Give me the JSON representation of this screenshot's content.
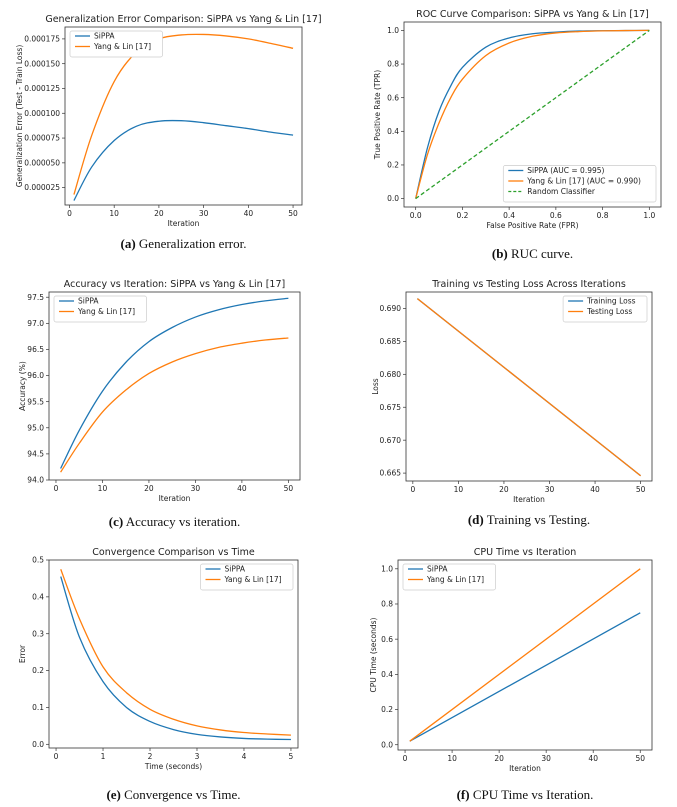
{
  "chart_data": [
    {
      "id": "a",
      "type": "line",
      "title": "Generalization Error Comparison: SiPPA vs Yang & Lin [17]",
      "xlabel": "Iteration",
      "ylabel": "Generalization Error (Test - Train Loss)",
      "xlim": [
        -1,
        52
      ],
      "ylim": [
        7.5e-06,
        0.000187
      ],
      "xticks": [
        0,
        10,
        20,
        30,
        40,
        50
      ],
      "yticks": [
        2.5e-05,
        5e-05,
        7.5e-05,
        0.0001,
        0.000125,
        0.00015,
        0.000175
      ],
      "ytick_labels": [
        "0.000025",
        "0.000050",
        "0.000075",
        "0.000100",
        "0.000125",
        "0.000150",
        "0.000175"
      ],
      "legend_loc": "top-left",
      "series": [
        {
          "name": "SiPPA",
          "color": "#1f77b4",
          "x": [
            1,
            5,
            10,
            15,
            20,
            25,
            30,
            35,
            40,
            45,
            50
          ],
          "values": [
            1.2e-05,
            4.6e-05,
            7.25e-05,
            8.7e-05,
            9.2e-05,
            9.25e-05,
            9.05e-05,
            8.75e-05,
            8.45e-05,
            8.1e-05,
            7.8e-05
          ]
        },
        {
          "name": "Yang & Lin [17]",
          "color": "#ff7f0e",
          "x": [
            1,
            5,
            10,
            15,
            20,
            25,
            30,
            35,
            40,
            45,
            50
          ],
          "values": [
            1.8e-05,
            7.8e-05,
            0.000132,
            0.000162,
            0.000175,
            0.000179,
            0.0001795,
            0.000178,
            0.000175,
            0.0001705,
            0.0001655
          ]
        }
      ],
      "caption_label": "(a)",
      "caption_text": "Generalization error."
    },
    {
      "id": "b",
      "type": "line",
      "title": "ROC Curve Comparison: SiPPA vs Yang & Lin [17]",
      "xlabel": "False Positive Rate (FPR)",
      "ylabel": "True Positive Rate (TPR)",
      "xlim": [
        -0.05,
        1.05
      ],
      "ylim": [
        -0.05,
        1.05
      ],
      "xticks": [
        0.0,
        0.2,
        0.4,
        0.6,
        0.8,
        1.0
      ],
      "xtick_labels": [
        "0.0",
        "0.2",
        "0.4",
        "0.6",
        "0.8",
        "1.0"
      ],
      "yticks": [
        0.0,
        0.2,
        0.4,
        0.6,
        0.8,
        1.0
      ],
      "ytick_labels": [
        "0.0",
        "0.2",
        "0.4",
        "0.6",
        "0.8",
        "1.0"
      ],
      "legend_loc": "bottom-right",
      "series": [
        {
          "name": "SiPPA (AUC = 0.995)",
          "color": "#1f77b4",
          "x": [
            0,
            0.05,
            0.1,
            0.15,
            0.2,
            0.3,
            0.4,
            0.5,
            0.6,
            0.7,
            0.8,
            0.9,
            1.0
          ],
          "values": [
            0,
            0.3,
            0.52,
            0.67,
            0.78,
            0.9,
            0.955,
            0.98,
            0.99,
            0.996,
            0.998,
            0.999,
            1.0
          ]
        },
        {
          "name": "Yang & Lin [17] (AUC = 0.990)",
          "color": "#ff7f0e",
          "x": [
            0,
            0.05,
            0.1,
            0.15,
            0.2,
            0.3,
            0.4,
            0.5,
            0.6,
            0.7,
            0.8,
            0.9,
            1.0
          ],
          "values": [
            0,
            0.26,
            0.45,
            0.6,
            0.71,
            0.85,
            0.925,
            0.965,
            0.985,
            0.993,
            0.997,
            0.999,
            1.0
          ]
        },
        {
          "name": "Random Classifier",
          "color": "#2ca02c",
          "dashed": true,
          "x": [
            0,
            1
          ],
          "values": [
            0,
            1
          ]
        }
      ],
      "caption_label": "(b)",
      "caption_text": "RUC curve."
    },
    {
      "id": "c",
      "type": "line",
      "title": "Accuracy vs Iteration: SiPPA vs Yang & Lin [17]",
      "xlabel": "Iteration",
      "ylabel": "Accuracy (%)",
      "xlim": [
        -1.5,
        52.5
      ],
      "ylim": [
        94.0,
        97.6
      ],
      "xticks": [
        0,
        10,
        20,
        30,
        40,
        50
      ],
      "yticks": [
        94.0,
        94.5,
        95.0,
        95.5,
        96.0,
        96.5,
        97.0,
        97.5
      ],
      "ytick_labels": [
        "94.0",
        "94.5",
        "95.0",
        "95.5",
        "96.0",
        "96.5",
        "97.0",
        "97.5"
      ],
      "legend_loc": "top-left",
      "series": [
        {
          "name": "SiPPA",
          "color": "#1f77b4",
          "x": [
            1,
            5,
            10,
            15,
            20,
            25,
            30,
            35,
            40,
            45,
            50
          ],
          "values": [
            94.22,
            94.95,
            95.7,
            96.25,
            96.65,
            96.92,
            97.12,
            97.26,
            97.36,
            97.43,
            97.48
          ]
        },
        {
          "name": "Yang & Lin [17]",
          "color": "#ff7f0e",
          "x": [
            1,
            5,
            10,
            15,
            20,
            25,
            30,
            35,
            40,
            45,
            50
          ],
          "values": [
            94.15,
            94.7,
            95.3,
            95.72,
            96.04,
            96.26,
            96.42,
            96.54,
            96.62,
            96.68,
            96.72
          ]
        }
      ],
      "caption_label": "(c)",
      "caption_text": "Accuracy vs iteration."
    },
    {
      "id": "d",
      "type": "line",
      "title": "Training vs Testing Loss Across Iterations",
      "xlabel": "Iteration",
      "ylabel": "Loss",
      "xlim": [
        -1.5,
        52.5
      ],
      "ylim": [
        0.6638,
        0.6925
      ],
      "xticks": [
        0,
        10,
        20,
        30,
        40,
        50
      ],
      "yticks": [
        0.665,
        0.67,
        0.675,
        0.68,
        0.685,
        0.69
      ],
      "ytick_labels": [
        "0.665",
        "0.670",
        "0.675",
        "0.680",
        "0.685",
        "0.690"
      ],
      "legend_loc": "top-right",
      "series": [
        {
          "name": "Training Loss",
          "color": "#1f77b4",
          "x": [
            1,
            50
          ],
          "values": [
            0.6915,
            0.6646
          ]
        },
        {
          "name": "Testing Loss",
          "color": "#ff7f0e",
          "x": [
            1,
            50
          ],
          "values": [
            0.6915,
            0.6646
          ]
        }
      ],
      "caption_label": "(d)",
      "caption_text": "Training vs Testing."
    },
    {
      "id": "e",
      "type": "line",
      "title": "Convergence Comparison vs Time",
      "xlabel": "Time (seconds)",
      "ylabel": "Error",
      "xlim": [
        -0.15,
        5.15
      ],
      "ylim": [
        -0.01,
        0.5
      ],
      "xticks": [
        0,
        1,
        2,
        3,
        4,
        5
      ],
      "yticks": [
        0.0,
        0.1,
        0.2,
        0.3,
        0.4,
        0.5
      ],
      "ytick_labels": [
        "0.0",
        "0.1",
        "0.2",
        "0.3",
        "0.4",
        "0.5"
      ],
      "legend_loc": "top-right",
      "series": [
        {
          "name": "SiPPA",
          "color": "#1f77b4",
          "x": [
            0.1,
            0.5,
            1.0,
            1.5,
            2.0,
            2.5,
            3.0,
            3.5,
            4.0,
            4.5,
            5.0
          ],
          "values": [
            0.455,
            0.29,
            0.17,
            0.1,
            0.062,
            0.04,
            0.027,
            0.02,
            0.016,
            0.014,
            0.013
          ]
        },
        {
          "name": "Yang & Lin [17]",
          "color": "#ff7f0e",
          "x": [
            0.1,
            0.5,
            1.0,
            1.5,
            2.0,
            2.5,
            3.0,
            3.5,
            4.0,
            4.5,
            5.0
          ],
          "values": [
            0.475,
            0.34,
            0.21,
            0.14,
            0.095,
            0.068,
            0.05,
            0.039,
            0.032,
            0.028,
            0.025
          ]
        }
      ],
      "caption_label": "(e)",
      "caption_text": "Convergence vs Time."
    },
    {
      "id": "f",
      "type": "line",
      "title": "CPU Time vs Iteration",
      "xlabel": "Iteration",
      "ylabel": "CPU Time (seconds)",
      "xlim": [
        -1.5,
        52.5
      ],
      "ylim": [
        -0.03,
        1.05
      ],
      "xticks": [
        0,
        10,
        20,
        30,
        40,
        50
      ],
      "yticks": [
        0.0,
        0.2,
        0.4,
        0.6,
        0.8,
        1.0
      ],
      "ytick_labels": [
        "0.0",
        "0.2",
        "0.4",
        "0.6",
        "0.8",
        "1.0"
      ],
      "legend_loc": "top-left",
      "series": [
        {
          "name": "SiPPA",
          "color": "#1f77b4",
          "x": [
            1,
            50
          ],
          "values": [
            0.02,
            0.75
          ]
        },
        {
          "name": "Yang & Lin [17]",
          "color": "#ff7f0e",
          "x": [
            1,
            50
          ],
          "values": [
            0.02,
            1.0
          ]
        }
      ],
      "caption_label": "(f)",
      "caption_text": "CPU Time vs Iteration."
    }
  ]
}
